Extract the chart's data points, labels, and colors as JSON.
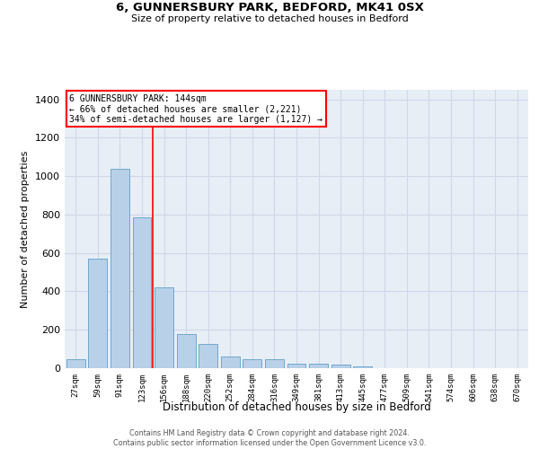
{
  "title_line1": "6, GUNNERSBURY PARK, BEDFORD, MK41 0SX",
  "title_line2": "Size of property relative to detached houses in Bedford",
  "xlabel": "Distribution of detached houses by size in Bedford",
  "ylabel": "Number of detached properties",
  "categories": [
    "27sqm",
    "59sqm",
    "91sqm",
    "123sqm",
    "156sqm",
    "188sqm",
    "220sqm",
    "252sqm",
    "284sqm",
    "316sqm",
    "349sqm",
    "381sqm",
    "413sqm",
    "445sqm",
    "477sqm",
    "509sqm",
    "541sqm",
    "574sqm",
    "606sqm",
    "638sqm",
    "670sqm"
  ],
  "values": [
    45,
    572,
    1040,
    785,
    420,
    178,
    125,
    63,
    45,
    45,
    25,
    25,
    18,
    10,
    0,
    0,
    0,
    0,
    0,
    0,
    0
  ],
  "bar_color": "#b8d0e8",
  "bar_edge_color": "#6fa8d0",
  "grid_color": "#d0d8e8",
  "background_color": "#e8eef6",
  "annotation_line1": "6 GUNNERSBURY PARK: 144sqm",
  "annotation_line2": "← 66% of detached houses are smaller (2,221)",
  "annotation_line3": "34% of semi-detached houses are larger (1,127) →",
  "redline_x": 3.5,
  "ylim": [
    0,
    1450
  ],
  "yticks": [
    0,
    200,
    400,
    600,
    800,
    1000,
    1200,
    1400
  ],
  "footer_line1": "Contains HM Land Registry data © Crown copyright and database right 2024.",
  "footer_line2": "Contains public sector information licensed under the Open Government Licence v3.0."
}
